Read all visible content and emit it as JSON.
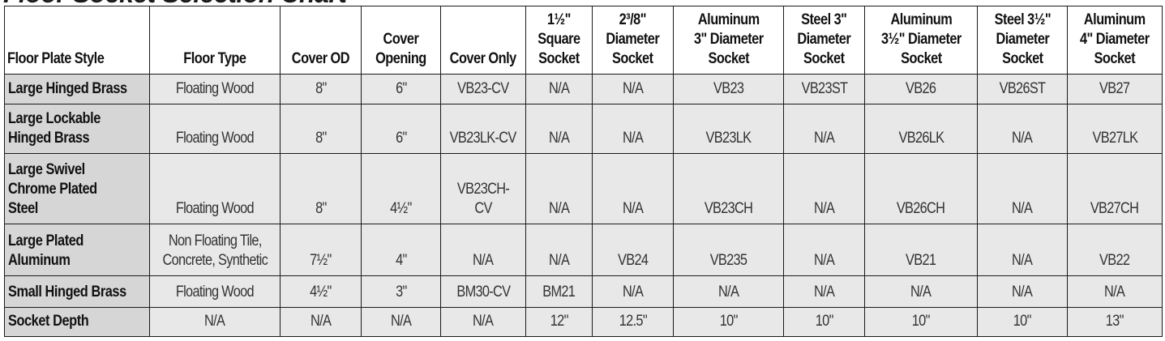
{
  "title": "Floor Socket Selection Chart",
  "headers": [
    "Floor Plate Style",
    "Floor Type",
    "Cover OD",
    "Cover\nOpening",
    "Cover Only",
    "1½\"\nSquare\nSocket",
    "2³/8\"\nDiameter\nSocket",
    "Aluminum\n3\" Diameter\nSocket",
    "Steel 3\"\nDiameter\nSocket",
    "Aluminum\n3½\" Diameter\nSocket",
    "Steel 3½\"\nDiameter\nSocket",
    "Aluminum\n4\" Diameter\nSocket"
  ],
  "rows": [
    [
      "Large Hinged Brass",
      "Floating Wood",
      "8\"",
      "6\"",
      "VB23-CV",
      "N/A",
      "N/A",
      "VB23",
      "VB23ST",
      "VB26",
      "VB26ST",
      "VB27"
    ],
    [
      "Large Lockable\nHinged Brass",
      "Floating Wood",
      "8\"",
      "6\"",
      "VB23LK-CV",
      "N/A",
      "N/A",
      "VB23LK",
      "N/A",
      "VB26LK",
      "N/A",
      "VB27LK"
    ],
    [
      "Large Swivel\nChrome Plated\nSteel",
      "Floating Wood",
      "8\"",
      "4½\"",
      "VB23CH-CV",
      "N/A",
      "N/A",
      "VB23CH",
      "N/A",
      "VB26CH",
      "N/A",
      "VB27CH"
    ],
    [
      "Large Plated\nAluminum",
      "Non Floating Tile,\nConcrete, Synthetic",
      "7½\"",
      "4\"",
      "N/A",
      "N/A",
      "VB24",
      "VB235",
      "N/A",
      "VB21",
      "N/A",
      "VB22"
    ],
    [
      "Small Hinged Brass",
      "Floating Wood",
      "4½\"",
      "3\"",
      "BM30-CV",
      "BM21",
      "N/A",
      "N/A",
      "N/A",
      "N/A",
      "N/A",
      "N/A"
    ],
    [
      "Socket Depth",
      "N/A",
      "N/A",
      "N/A",
      "N/A",
      "12\"",
      "12.5\"",
      "10\"",
      "10\"",
      "10\"",
      "10\"",
      "13\""
    ]
  ]
}
